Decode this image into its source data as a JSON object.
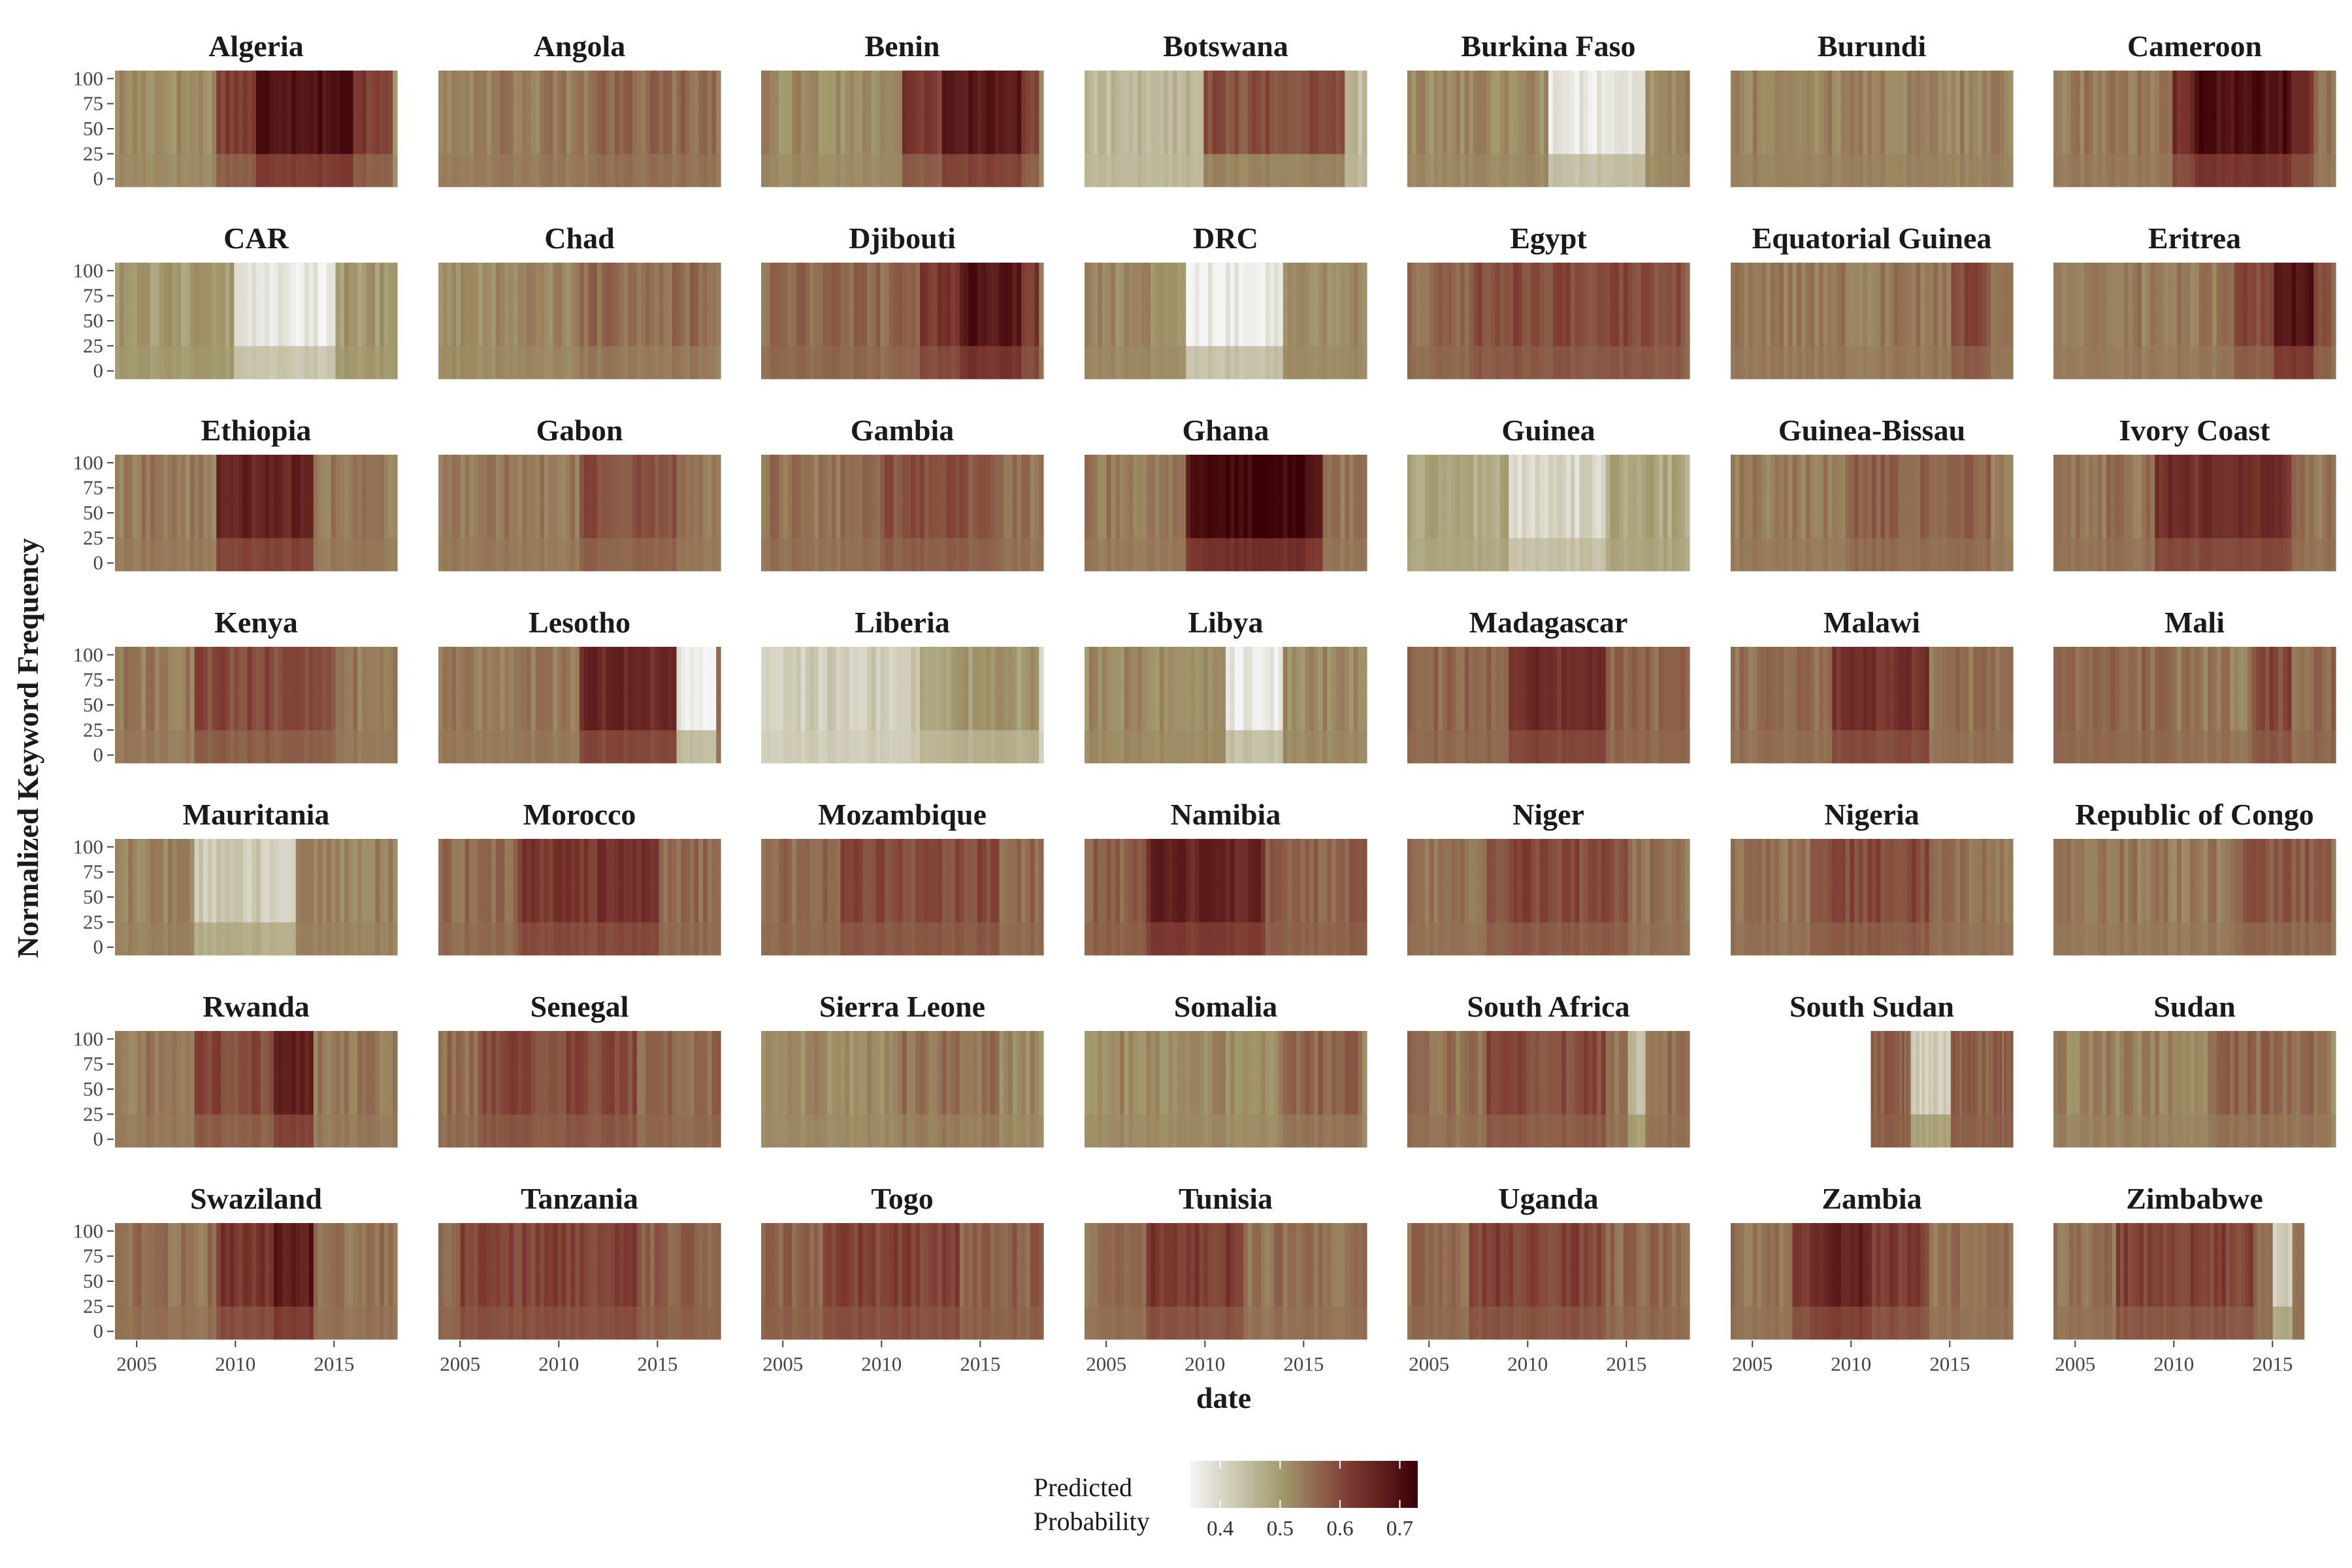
{
  "chart_data": {
    "type": "heatmap",
    "xlabel": "date",
    "ylabel": "Normalized Keyword Frequency",
    "x_ticks": [
      2005,
      2010,
      2015
    ],
    "xlim": [
      2003.9,
      2018.2
    ],
    "y_ticks": [
      0,
      25,
      50,
      75,
      100
    ],
    "ylim": [
      -8,
      108
    ],
    "legend": {
      "title": [
        "Predicted",
        "Probability"
      ],
      "ticks": [
        0.4,
        0.5,
        0.6,
        0.7
      ],
      "range": [
        0.35,
        0.73
      ],
      "colors": [
        "#f5f5f5",
        "#a29a6e",
        "#7e3a32",
        "#3b0005"
      ],
      "placement": "bottom"
    },
    "panels": [
      {
        "name": "Algeria",
        "base": 0.52,
        "blocks": [
          [
            2009,
            2018,
            0.62
          ],
          [
            2011,
            2016,
            0.7
          ]
        ]
      },
      {
        "name": "Angola",
        "base": 0.54,
        "blocks": [
          [
            2012,
            2018,
            0.56
          ]
        ]
      },
      {
        "name": "Benin",
        "base": 0.52,
        "blocks": [
          [
            2011,
            2018,
            0.62
          ],
          [
            2013,
            2017,
            0.68
          ]
        ]
      },
      {
        "name": "Botswana",
        "base": 0.45,
        "blocks": [
          [
            2010,
            2017,
            0.59
          ]
        ]
      },
      {
        "name": "Burkina Faso",
        "base": 0.52,
        "blocks": [
          [
            2011,
            2016,
            0.37
          ]
        ]
      },
      {
        "name": "Burundi",
        "base": 0.53,
        "blocks": []
      },
      {
        "name": "Cameroon",
        "base": 0.54,
        "blocks": [
          [
            2010,
            2017,
            0.64
          ],
          [
            2011,
            2016,
            0.7
          ]
        ]
      },
      {
        "name": "CAR",
        "base": 0.5,
        "blocks": [
          [
            2010,
            2015,
            0.37
          ]
        ]
      },
      {
        "name": "Chad",
        "base": 0.52,
        "blocks": [
          [
            2011,
            2018,
            0.56
          ]
        ]
      },
      {
        "name": "Djibouti",
        "base": 0.56,
        "blocks": [
          [
            2012,
            2018,
            0.63
          ],
          [
            2014,
            2017,
            0.69
          ]
        ]
      },
      {
        "name": "DRC",
        "base": 0.52,
        "blocks": [
          [
            2009,
            2014,
            0.37
          ]
        ]
      },
      {
        "name": "Egypt",
        "base": 0.56,
        "blocks": [
          [
            2007,
            2018,
            0.6
          ]
        ]
      },
      {
        "name": "Equatorial Guinea",
        "base": 0.54,
        "blocks": [
          [
            2015,
            2017,
            0.6
          ]
        ]
      },
      {
        "name": "Eritrea",
        "base": 0.54,
        "blocks": [
          [
            2013,
            2018,
            0.6
          ],
          [
            2015,
            2017,
            0.69
          ]
        ]
      },
      {
        "name": "Ethiopia",
        "base": 0.54,
        "blocks": [
          [
            2009,
            2014,
            0.66
          ]
        ]
      },
      {
        "name": "Gabon",
        "base": 0.54,
        "blocks": [
          [
            2011,
            2016,
            0.59
          ]
        ]
      },
      {
        "name": "Gambia",
        "base": 0.55,
        "blocks": [
          [
            2010,
            2016,
            0.59
          ]
        ]
      },
      {
        "name": "Ghana",
        "base": 0.54,
        "blocks": [
          [
            2009,
            2016,
            0.69
          ],
          [
            2010,
            2015,
            0.72
          ]
        ]
      },
      {
        "name": "Guinea",
        "base": 0.48,
        "blocks": [
          [
            2009,
            2014,
            0.4
          ]
        ]
      },
      {
        "name": "Guinea-Bissau",
        "base": 0.54,
        "blocks": [
          [
            2010,
            2017,
            0.57
          ]
        ]
      },
      {
        "name": "Ivory Coast",
        "base": 0.55,
        "blocks": [
          [
            2009,
            2016,
            0.64
          ]
        ]
      },
      {
        "name": "Kenya",
        "base": 0.54,
        "blocks": [
          [
            2008,
            2015,
            0.6
          ]
        ]
      },
      {
        "name": "Lesotho",
        "base": 0.54,
        "blocks": [
          [
            2011,
            2016,
            0.65
          ],
          [
            2016,
            2018,
            0.37
          ]
        ]
      },
      {
        "name": "Liberia",
        "base": 0.42,
        "blocks": [
          [
            2012,
            2018,
            0.5
          ]
        ]
      },
      {
        "name": "Libya",
        "base": 0.52,
        "blocks": [
          [
            2011,
            2014,
            0.37
          ]
        ]
      },
      {
        "name": "Madagascar",
        "base": 0.56,
        "blocks": [
          [
            2009,
            2014,
            0.64
          ]
        ]
      },
      {
        "name": "Malawi",
        "base": 0.55,
        "blocks": [
          [
            2009,
            2014,
            0.64
          ]
        ]
      },
      {
        "name": "Mali",
        "base": 0.56,
        "blocks": [
          [
            2010,
            2016,
            0.54
          ],
          [
            2014,
            2016,
            0.6
          ]
        ]
      },
      {
        "name": "Mauritania",
        "base": 0.53,
        "blocks": [
          [
            2008,
            2013,
            0.42
          ]
        ]
      },
      {
        "name": "Morocco",
        "base": 0.56,
        "blocks": [
          [
            2008,
            2015,
            0.63
          ]
        ]
      },
      {
        "name": "Mozambique",
        "base": 0.56,
        "blocks": [
          [
            2008,
            2016,
            0.6
          ]
        ]
      },
      {
        "name": "Namibia",
        "base": 0.57,
        "blocks": [
          [
            2007,
            2013,
            0.66
          ]
        ]
      },
      {
        "name": "Niger",
        "base": 0.55,
        "blocks": [
          [
            2008,
            2015,
            0.6
          ]
        ]
      },
      {
        "name": "Nigeria",
        "base": 0.55,
        "blocks": [
          [
            2008,
            2014,
            0.6
          ]
        ]
      },
      {
        "name": "Republic of Congo",
        "base": 0.54,
        "blocks": [
          [
            2013,
            2018,
            0.58
          ]
        ]
      },
      {
        "name": "Rwanda",
        "base": 0.54,
        "blocks": [
          [
            2008,
            2014,
            0.6
          ],
          [
            2012,
            2014,
            0.66
          ]
        ]
      },
      {
        "name": "Senegal",
        "base": 0.56,
        "blocks": [
          [
            2006,
            2014,
            0.6
          ]
        ]
      },
      {
        "name": "Sierra Leone",
        "base": 0.52,
        "blocks": [
          [
            2011,
            2016,
            0.55
          ]
        ]
      },
      {
        "name": "Somalia",
        "base": 0.52,
        "blocks": [
          [
            2014,
            2018,
            0.57
          ]
        ]
      },
      {
        "name": "South Africa",
        "base": 0.55,
        "blocks": [
          [
            2008,
            2014,
            0.6
          ],
          [
            2015,
            2016,
            0.45
          ]
        ]
      },
      {
        "name": "South Sudan",
        "base": 0.57,
        "start": 2011,
        "blocks": [
          [
            2013,
            2015,
            0.42
          ]
        ]
      },
      {
        "name": "Sudan",
        "base": 0.53,
        "blocks": [
          [
            2012,
            2018,
            0.56
          ]
        ]
      },
      {
        "name": "Swaziland",
        "base": 0.55,
        "blocks": [
          [
            2009,
            2014,
            0.63
          ],
          [
            2012,
            2014,
            0.68
          ]
        ]
      },
      {
        "name": "Tanzania",
        "base": 0.57,
        "blocks": [
          [
            2005,
            2014,
            0.61
          ]
        ]
      },
      {
        "name": "Togo",
        "base": 0.57,
        "blocks": [
          [
            2007,
            2014,
            0.61
          ]
        ]
      },
      {
        "name": "Tunisia",
        "base": 0.55,
        "blocks": [
          [
            2007,
            2012,
            0.62
          ]
        ]
      },
      {
        "name": "Uganda",
        "base": 0.56,
        "blocks": [
          [
            2007,
            2014,
            0.61
          ]
        ]
      },
      {
        "name": "Zambia",
        "base": 0.55,
        "blocks": [
          [
            2007,
            2014,
            0.62
          ],
          [
            2008,
            2011,
            0.66
          ]
        ]
      },
      {
        "name": "Zimbabwe",
        "base": 0.55,
        "end": 2016.6,
        "blocks": [
          [
            2007,
            2014,
            0.61
          ],
          [
            2015,
            2016,
            0.42
          ]
        ]
      }
    ]
  }
}
